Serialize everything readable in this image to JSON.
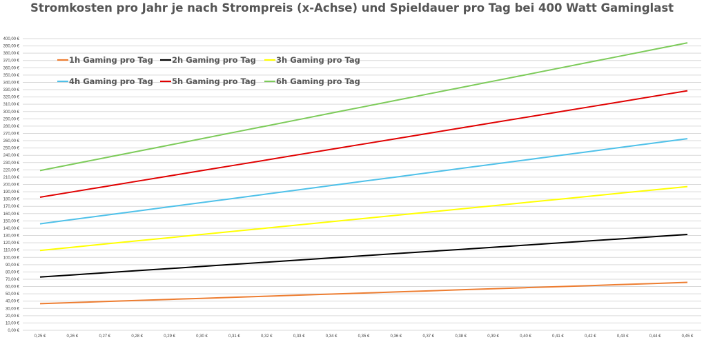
{
  "chart_data": {
    "type": "line",
    "title": "Stromkosten pro Jahr je nach Strompreis (x-Achse) und Spieldauer pro Tag bei 400 Watt Gaminglast",
    "xlabel": "",
    "ylabel": "",
    "x": [
      0.25,
      0.26,
      0.27,
      0.28,
      0.29,
      0.3,
      0.31,
      0.32,
      0.33,
      0.34,
      0.35,
      0.36,
      0.37,
      0.38,
      0.39,
      0.4,
      0.41,
      0.42,
      0.43,
      0.44,
      0.45
    ],
    "x_tick_labels": [
      "0,25 €",
      "0,26 €",
      "0,27 €",
      "0,28 €",
      "0,29 €",
      "0,30 €",
      "0,31 €",
      "0,32 €",
      "0,33 €",
      "0,34 €",
      "0,35 €",
      "0,36 €",
      "0,37 €",
      "0,38 €",
      "0,39 €",
      "0,40 €",
      "0,41 €",
      "0,42 €",
      "0,43 €",
      "0,44 €",
      "0,45 €"
    ],
    "ylim": [
      0,
      400
    ],
    "y_tick_step": 10,
    "y_tick_format": "{v},00 €",
    "grid": true,
    "legend_position": "top-left",
    "series": [
      {
        "name": "1h Gaming pro Tag",
        "color": "#ED7D31",
        "values": [
          36.5,
          37.96,
          39.42,
          40.88,
          42.34,
          43.8,
          45.26,
          46.72,
          48.18,
          49.64,
          51.1,
          52.56,
          54.02,
          55.48,
          56.94,
          58.4,
          59.86,
          61.32,
          62.78,
          64.24,
          65.7
        ]
      },
      {
        "name": "2h Gaming pro Tag",
        "color": "#000000",
        "values": [
          73.0,
          75.92,
          78.84,
          81.76,
          84.68,
          87.6,
          90.52,
          93.44,
          96.36,
          99.28,
          102.2,
          105.12,
          108.04,
          110.96,
          113.88,
          116.8,
          119.72,
          122.64,
          125.56,
          128.48,
          131.4
        ]
      },
      {
        "name": "3h Gaming pro Tag",
        "color": "#FFFF00",
        "values": [
          109.5,
          113.88,
          118.26,
          122.64,
          127.02,
          131.4,
          135.78,
          140.16,
          144.54,
          148.92,
          153.3,
          157.68,
          162.06,
          166.44,
          170.82,
          175.2,
          179.58,
          183.96,
          188.34,
          192.72,
          197.1
        ]
      },
      {
        "name": "4h Gaming pro Tag",
        "color": "#4FC1E9",
        "values": [
          146.0,
          151.84,
          157.68,
          163.52,
          169.36,
          175.2,
          181.04,
          186.88,
          192.72,
          198.56,
          204.4,
          210.24,
          216.08,
          221.92,
          227.76,
          233.6,
          239.44,
          245.28,
          251.12,
          256.96,
          262.8
        ]
      },
      {
        "name": "5h Gaming pro Tag",
        "color": "#E00000",
        "values": [
          182.5,
          189.8,
          197.1,
          204.4,
          211.7,
          219.0,
          226.3,
          233.6,
          240.9,
          248.2,
          255.5,
          262.8,
          270.1,
          277.4,
          284.7,
          292.0,
          299.3,
          306.6,
          313.9,
          321.2,
          328.5
        ]
      },
      {
        "name": "6h Gaming pro Tag",
        "color": "#7DCB5A",
        "values": [
          219.0,
          227.76,
          236.52,
          245.28,
          254.04,
          262.8,
          271.56,
          280.32,
          289.08,
          297.84,
          306.6,
          315.36,
          324.12,
          332.88,
          341.64,
          350.4,
          359.16,
          367.92,
          376.68,
          385.44,
          394.2
        ]
      }
    ]
  }
}
